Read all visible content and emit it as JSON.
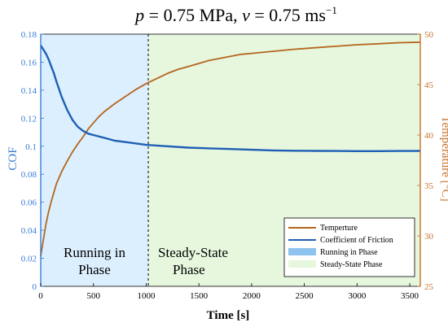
{
  "chart_data": {
    "type": "line",
    "title": {
      "p_symbol": "p",
      "p_value": " = 0.75 MPa, ",
      "v_symbol": "v",
      "v_value": " = 0.75 ms",
      "v_exponent": "−1"
    },
    "xlabel": "Time [s]",
    "ylabel_left": "COF",
    "ylabel_right": "Temperature [°C]",
    "xlim": [
      0,
      3600
    ],
    "ylim_left": [
      0,
      0.18
    ],
    "ylim_right": [
      25,
      50
    ],
    "x_ticks": [
      0,
      500,
      1000,
      1500,
      2000,
      2500,
      3000,
      3500
    ],
    "x_tick_labels": [
      "0",
      "500",
      "1000",
      "1500",
      "2000",
      "2500",
      "3000",
      "3500"
    ],
    "y_left_ticks": [
      0,
      0.02,
      0.04,
      0.06,
      0.08,
      0.1,
      0.12,
      0.14,
      0.16,
      0.18
    ],
    "y_left_tick_labels": [
      "0",
      "0.02",
      "0.04",
      "0.06",
      "0.08",
      "0.1",
      "0.12",
      "0.14",
      "0.16",
      "0.18"
    ],
    "y_right_ticks": [
      25,
      30,
      35,
      40,
      45,
      50
    ],
    "y_right_tick_labels": [
      "25",
      "30",
      "35",
      "40",
      "45",
      "50"
    ],
    "phase_boundary_x": 1020,
    "phases": [
      {
        "name": "Running in Phase",
        "label_lines": [
          "Running in",
          "Phase"
        ],
        "x_start": 0,
        "x_end": 1020,
        "color": "#dcefff"
      },
      {
        "name": "Steady-State Phase",
        "label_lines": [
          "Steady-State",
          "Phase"
        ],
        "x_start": 1020,
        "x_end": 3600,
        "color": "#e6f7de"
      }
    ],
    "series": [
      {
        "name": "Temperture",
        "axis": "right",
        "color": "#b5651d",
        "x": [
          0,
          25,
          50,
          75,
          100,
          150,
          200,
          250,
          300,
          350,
          400,
          450,
          500,
          550,
          600,
          700,
          800,
          900,
          1000,
          1100,
          1200,
          1300,
          1400,
          1500,
          1600,
          1700,
          1800,
          1900,
          2000,
          2200,
          2400,
          2600,
          2800,
          3000,
          3200,
          3400,
          3600
        ],
        "y": [
          28.0,
          29.6,
          31.2,
          32.4,
          33.4,
          35.2,
          36.4,
          37.4,
          38.3,
          39.1,
          39.8,
          40.6,
          41.2,
          41.8,
          42.3,
          43.1,
          43.8,
          44.5,
          45.1,
          45.6,
          46.1,
          46.5,
          46.8,
          47.1,
          47.4,
          47.6,
          47.8,
          48.0,
          48.1,
          48.3,
          48.5,
          48.65,
          48.8,
          48.95,
          49.05,
          49.15,
          49.2
        ]
      },
      {
        "name": "Coefficient of Friction",
        "axis": "left",
        "color": "#1f5fb4",
        "x": [
          0,
          25,
          50,
          75,
          100,
          125,
          150,
          200,
          250,
          300,
          350,
          400,
          450,
          500,
          600,
          700,
          800,
          900,
          1000,
          1200,
          1400,
          1600,
          1800,
          2000,
          2200,
          2400,
          2600,
          2800,
          3000,
          3200,
          3400,
          3600
        ],
        "y": [
          0.172,
          0.169,
          0.166,
          0.162,
          0.157,
          0.152,
          0.146,
          0.135,
          0.126,
          0.119,
          0.114,
          0.111,
          0.109,
          0.108,
          0.106,
          0.104,
          0.103,
          0.102,
          0.101,
          0.1,
          0.099,
          0.0985,
          0.098,
          0.0975,
          0.097,
          0.0968,
          0.0967,
          0.0966,
          0.0965,
          0.0965,
          0.0966,
          0.0967
        ]
      }
    ],
    "legend": {
      "position": "bottom-right",
      "entries": [
        "Temperture",
        "Coefficient of Friction",
        "Running in Phase",
        "Steady-State Phase"
      ]
    },
    "colors": {
      "left_axis": "#3a7dd6",
      "right_axis": "#c8732c"
    }
  }
}
